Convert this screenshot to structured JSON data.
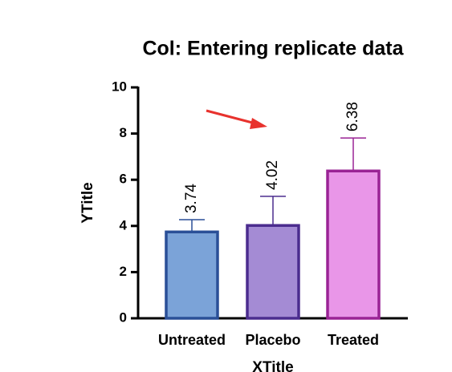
{
  "chart_data": {
    "type": "bar",
    "title": "Col: Entering replicate data",
    "x_label": "XTitle",
    "y_label": "YTitle",
    "categories": [
      "Untreated",
      "Placebo",
      "Treated"
    ],
    "values": [
      3.74,
      4.02,
      6.38
    ],
    "errors": [
      0.53,
      1.26,
      1.43
    ],
    "colors": [
      "#7ba3d8",
      "#a48bd4",
      "#e996e8"
    ],
    "edge_colors": [
      "#2a4f97",
      "#4b2c8e",
      "#9a2395"
    ],
    "ylim": [
      0,
      10
    ],
    "yticks": [
      0,
      2,
      4,
      6,
      8,
      10
    ]
  }
}
